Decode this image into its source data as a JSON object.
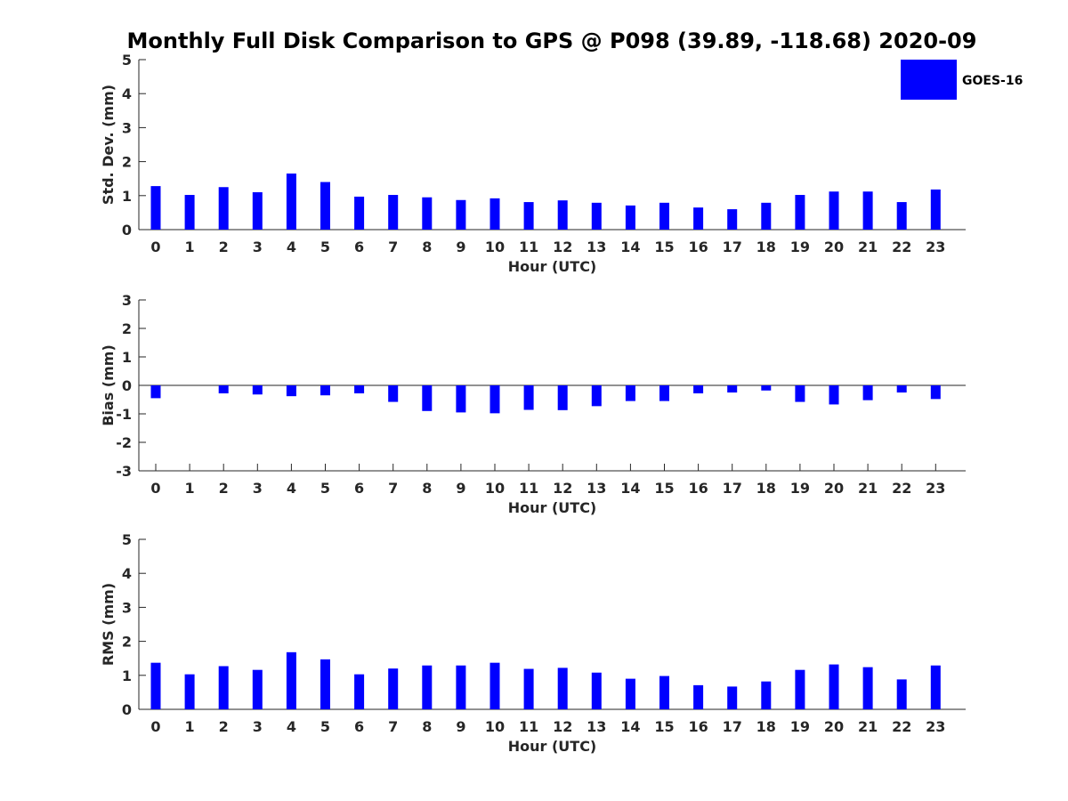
{
  "title": "Monthly Full Disk Comparison to GPS @ P098 (39.89, -118.68) 2020-09",
  "legend": {
    "label": "GOES-16",
    "color": "#0000ff",
    "placement": "top-right"
  },
  "colors": {
    "bar": "#0000ff",
    "axis": "#262626"
  },
  "chart_data": [
    {
      "type": "bar",
      "xlabel": "Hour (UTC)",
      "ylabel": "Std. Dev. (mm)",
      "ylim": [
        0,
        5
      ],
      "yticks": [
        0,
        1,
        2,
        3,
        4,
        5
      ],
      "categories": [
        "0",
        "1",
        "2",
        "3",
        "4",
        "5",
        "6",
        "7",
        "8",
        "9",
        "10",
        "11",
        "12",
        "13",
        "14",
        "15",
        "16",
        "17",
        "18",
        "19",
        "20",
        "21",
        "22",
        "23"
      ],
      "series": [
        {
          "name": "GOES-16",
          "values": [
            1.28,
            1.02,
            1.25,
            1.1,
            1.65,
            1.4,
            0.97,
            1.02,
            0.95,
            0.87,
            0.92,
            0.81,
            0.86,
            0.79,
            0.71,
            0.79,
            0.65,
            0.6,
            0.79,
            1.02,
            1.12,
            1.12,
            0.81,
            1.18
          ]
        }
      ],
      "grid": false
    },
    {
      "type": "bar",
      "xlabel": "Hour (UTC)",
      "ylabel": "Bias (mm)",
      "ylim": [
        -3,
        3
      ],
      "yticks": [
        -3,
        -2,
        -1,
        0,
        1,
        2,
        3
      ],
      "categories": [
        "0",
        "1",
        "2",
        "3",
        "4",
        "5",
        "6",
        "7",
        "8",
        "9",
        "10",
        "11",
        "12",
        "13",
        "14",
        "15",
        "16",
        "17",
        "18",
        "19",
        "20",
        "21",
        "22",
        "23"
      ],
      "series": [
        {
          "name": "GOES-16",
          "values": [
            -0.45,
            0.0,
            -0.28,
            -0.32,
            -0.38,
            -0.35,
            -0.28,
            -0.58,
            -0.9,
            -0.95,
            -0.98,
            -0.86,
            -0.87,
            -0.73,
            -0.55,
            -0.55,
            -0.28,
            -0.25,
            -0.18,
            -0.58,
            -0.67,
            -0.52,
            -0.25,
            -0.48
          ]
        }
      ],
      "zero_line": true,
      "grid": false
    },
    {
      "type": "bar",
      "xlabel": "Hour (UTC)",
      "ylabel": "RMS (mm)",
      "ylim": [
        0,
        5
      ],
      "yticks": [
        0,
        1,
        2,
        3,
        4,
        5
      ],
      "categories": [
        "0",
        "1",
        "2",
        "3",
        "4",
        "5",
        "6",
        "7",
        "8",
        "9",
        "10",
        "11",
        "12",
        "13",
        "14",
        "15",
        "16",
        "17",
        "18",
        "19",
        "20",
        "21",
        "22",
        "23"
      ],
      "series": [
        {
          "name": "GOES-16",
          "values": [
            1.37,
            1.03,
            1.27,
            1.16,
            1.68,
            1.47,
            1.03,
            1.2,
            1.29,
            1.29,
            1.37,
            1.19,
            1.22,
            1.08,
            0.9,
            0.98,
            0.71,
            0.67,
            0.82,
            1.16,
            1.32,
            1.24,
            0.88,
            1.29
          ]
        }
      ],
      "grid": false
    }
  ]
}
